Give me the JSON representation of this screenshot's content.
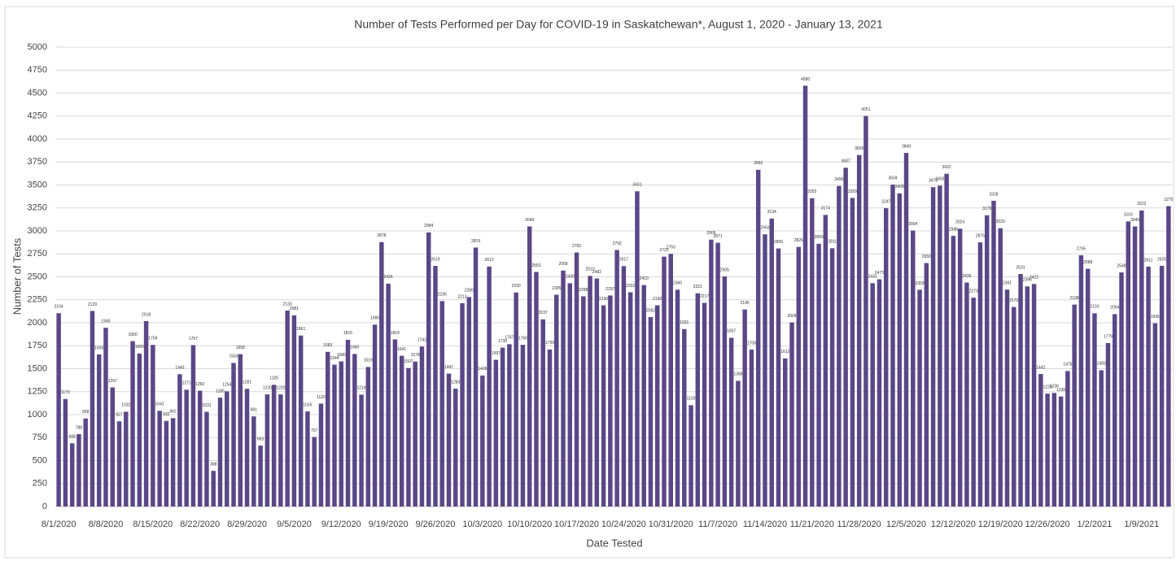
{
  "chart_data": {
    "type": "bar",
    "title": "Number of Tests Performed per Day for COVID-19 in Saskatchewan*, August 1, 2020 - January 13, 2021",
    "x_label": "Date Tested",
    "y_label": "Number of Tests",
    "color": "#5b4787",
    "grid": true,
    "ylim": [
      0,
      5000
    ],
    "yticks": [
      0,
      250,
      500,
      750,
      1000,
      1250,
      1500,
      1750,
      2000,
      2250,
      2500,
      2750,
      3000,
      3250,
      3500,
      3750,
      4000,
      4250,
      4500,
      4750,
      5000
    ],
    "categories": [
      "8/1/2020",
      null,
      null,
      null,
      null,
      null,
      null,
      "8/8/2020",
      null,
      null,
      null,
      null,
      null,
      null,
      "8/15/2020",
      null,
      null,
      null,
      null,
      null,
      null,
      "8/22/2020",
      null,
      null,
      null,
      null,
      null,
      null,
      "8/29/2020",
      null,
      null,
      null,
      null,
      null,
      null,
      "9/5/2020",
      null,
      null,
      null,
      null,
      null,
      null,
      "9/12/2020",
      null,
      null,
      null,
      null,
      null,
      null,
      "9/19/2020",
      null,
      null,
      null,
      null,
      null,
      null,
      "9/26/2020",
      null,
      null,
      null,
      null,
      null,
      null,
      "10/3/2020",
      null,
      null,
      null,
      null,
      null,
      null,
      "10/10/2020",
      null,
      null,
      null,
      null,
      null,
      null,
      "10/17/2020",
      null,
      null,
      null,
      null,
      null,
      null,
      "10/24/2020",
      null,
      null,
      null,
      null,
      null,
      null,
      "10/31/2020",
      null,
      null,
      null,
      null,
      null,
      null,
      "11/7/2020",
      null,
      null,
      null,
      null,
      null,
      null,
      "11/14/2020",
      null,
      null,
      null,
      null,
      null,
      null,
      "11/21/2020",
      null,
      null,
      null,
      null,
      null,
      null,
      "11/28/2020",
      null,
      null,
      null,
      null,
      null,
      null,
      "12/5/2020",
      null,
      null,
      null,
      null,
      null,
      null,
      "12/12/2020",
      null,
      null,
      null,
      null,
      null,
      null,
      "12/19/2020",
      null,
      null,
      null,
      null,
      null,
      null,
      "12/26/2020",
      null,
      null,
      null,
      null,
      null,
      null,
      "1/2/2021",
      null,
      null,
      null,
      null,
      null,
      null,
      "1/9/2021",
      null,
      null,
      null,
      null
    ],
    "values": [
      2104,
      1170,
      688,
      788,
      958,
      2129,
      1655,
      1945,
      1297,
      927,
      1032,
      1800,
      1665,
      2018,
      1759,
      1041,
      932,
      962,
      1440,
      1271,
      1757,
      1260,
      1031,
      388,
      1185,
      1254,
      1563,
      1658,
      1281,
      981,
      663,
      1220,
      1325,
      1220,
      2133,
      2081,
      1861,
      1035,
      757,
      1120,
      1683,
      1544,
      1580,
      1815,
      1660,
      1218,
      1519,
      1980,
      2878,
      2426,
      1819,
      1641,
      1507,
      1578,
      1742,
      2984,
      2619,
      2236,
      1447,
      1283,
      2213,
      2280,
      2819,
      1426,
      2612,
      1597,
      1730,
      1767,
      2330,
      1760,
      3049,
      2553,
      2037,
      1709,
      2305,
      2568,
      2430,
      2765,
      2288,
      2510,
      2482,
      2190,
      2297,
      2792,
      2617,
      2332,
      3431,
      2410,
      2062,
      2190,
      2720,
      2750,
      2360,
      1931,
      1103,
      2321,
      2217,
      2905,
      2871,
      2505,
      1837,
      1368,
      2145,
      1708,
      3665,
      2963,
      3134,
      2809,
      1612,
      2004,
      2826,
      4580,
      3355,
      2860,
      3174,
      2811,
      3490,
      3687,
      3359,
      3826,
      4251,
      2431,
      2473,
      3247,
      3504,
      3408,
      3849,
      3004,
      2359,
      2650,
      3476,
      3493,
      3622,
      2946,
      3024,
      2438,
      2273,
      2875,
      3170,
      3328,
      3029,
      2361,
      2172,
      2531,
      2396,
      2422,
      1442,
      1229,
      1236,
      1198,
      1475,
      2198,
      2735,
      2588,
      2103,
      1483,
      1779,
      2094,
      2548,
      3103,
      3049,
      3222,
      2611,
      1995,
      2620,
      3270
    ]
  }
}
